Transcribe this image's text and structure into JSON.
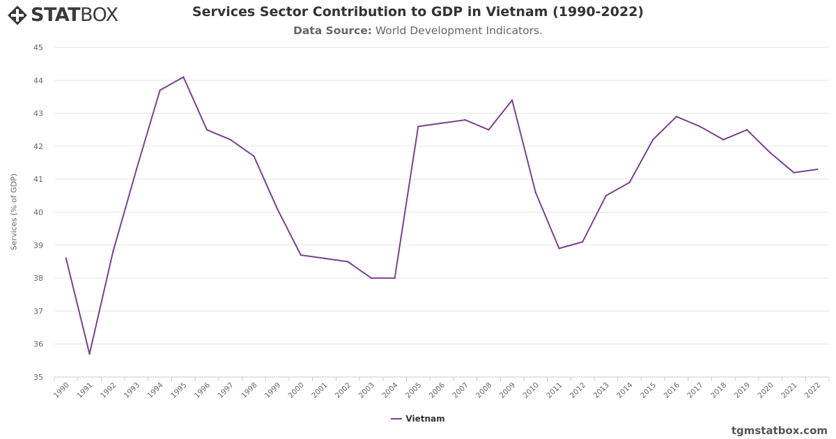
{
  "brand": {
    "bold": "STAT",
    "light": "BOX",
    "logo_icon": "diamond-cross-icon"
  },
  "header": {
    "title": "Services Sector Contribution to GDP in Vietnam (1990-2022)",
    "source_label": "Data Source:",
    "source_value": "World Development Indicators."
  },
  "footer": {
    "site": "tgmstatbox.com"
  },
  "chart_data": {
    "type": "line",
    "title": "Services Sector Contribution to GDP in Vietnam (1990-2022)",
    "subtitle": "Data Source: World Development Indicators.",
    "xlabel": "",
    "ylabel": "Services (% of GDP)",
    "ylim": [
      35,
      45
    ],
    "yticks": [
      35,
      36,
      37,
      38,
      39,
      40,
      41,
      42,
      43,
      44,
      45
    ],
    "grid": true,
    "legend_position": "bottom-center",
    "categories": [
      "1990",
      "1991",
      "1992",
      "1993",
      "1994",
      "1995",
      "1996",
      "1997",
      "1998",
      "1999",
      "2000",
      "2001",
      "2002",
      "2003",
      "2004",
      "2005",
      "2006",
      "2007",
      "2008",
      "2009",
      "2010",
      "2011",
      "2012",
      "2013",
      "2014",
      "2015",
      "2016",
      "2017",
      "2018",
      "2019",
      "2020",
      "2021",
      "2022"
    ],
    "series": [
      {
        "name": "Vietnam",
        "color": "#7b3f8f",
        "values": [
          38.6,
          35.7,
          38.8,
          41.3,
          43.7,
          44.1,
          42.5,
          42.2,
          41.7,
          40.1,
          38.7,
          38.6,
          38.5,
          38.0,
          38.0,
          42.6,
          42.7,
          42.8,
          42.5,
          43.4,
          40.6,
          38.9,
          39.1,
          40.5,
          40.9,
          42.2,
          42.9,
          42.6,
          42.2,
          42.5,
          41.8,
          41.2,
          41.3
        ]
      }
    ]
  }
}
